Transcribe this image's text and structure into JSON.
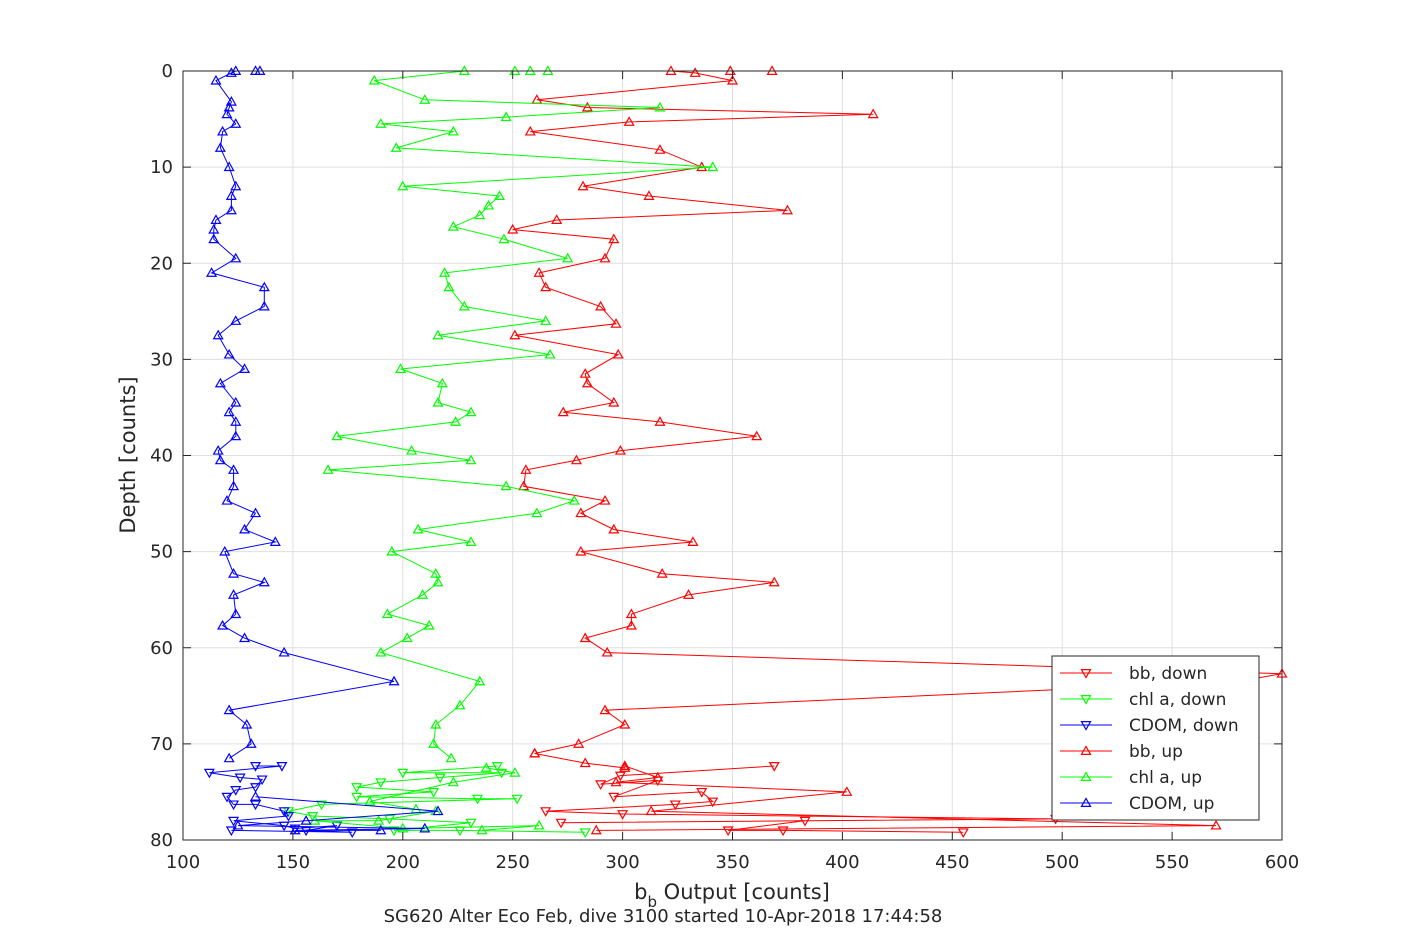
{
  "chart_data": {
    "type": "line",
    "title": "",
    "xlabel_main": "b",
    "xlabel_sub": "b",
    "xlabel_rest": " Output [counts]",
    "ylabel": "Depth [counts]",
    "caption": "SG620 Alter Eco Feb, dive 3100 started 10-Apr-2018 17:44:58",
    "xlim": [
      100,
      600
    ],
    "ylim": [
      0,
      80
    ],
    "y_reversed": true,
    "grid": true,
    "legend_position": "bottom-right",
    "xticks": [
      100,
      150,
      200,
      250,
      300,
      350,
      400,
      450,
      500,
      550,
      600
    ],
    "yticks": [
      0,
      10,
      20,
      30,
      40,
      50,
      60,
      70,
      80
    ],
    "series": [
      {
        "name": "bb, down",
        "color": "#ff0000",
        "marker": "triangle-down",
        "points": [
          [
            369,
            72.3
          ],
          [
            299,
            73.3
          ],
          [
            290,
            74.2
          ],
          [
            316,
            73.8
          ],
          [
            296,
            75.5
          ],
          [
            336,
            75.0
          ],
          [
            341,
            76.0
          ],
          [
            324,
            76.3
          ],
          [
            265,
            77.0
          ],
          [
            300,
            77.3
          ],
          [
            497,
            77.8
          ],
          [
            272,
            78.2
          ],
          [
            383,
            78.0
          ],
          [
            348,
            79.0
          ],
          [
            373,
            79.0
          ],
          [
            455,
            79.2
          ]
        ]
      },
      {
        "name": "chl a, down",
        "color": "#00ff00",
        "marker": "triangle-down",
        "points": [
          [
            243,
            72.3
          ],
          [
            200,
            73.0
          ],
          [
            245,
            73.0
          ],
          [
            217,
            73.5
          ],
          [
            190,
            74.0
          ],
          [
            179,
            74.5
          ],
          [
            214,
            75.0
          ],
          [
            179,
            75.5
          ],
          [
            234,
            75.7
          ],
          [
            252,
            75.7
          ],
          [
            163,
            76.3
          ],
          [
            148,
            77.0
          ],
          [
            159,
            77.5
          ],
          [
            194,
            77.8
          ],
          [
            231,
            78.2
          ],
          [
            196,
            79.0
          ],
          [
            226,
            79.0
          ],
          [
            283,
            79.2
          ]
        ]
      },
      {
        "name": "CDOM, down",
        "color": "#0000ff",
        "marker": "triangle-down",
        "points": [
          [
            133,
            72.3
          ],
          [
            145,
            72.3
          ],
          [
            112,
            73.0
          ],
          [
            126,
            73.5
          ],
          [
            136,
            73.7
          ],
          [
            133,
            74.5
          ],
          [
            124,
            74.8
          ],
          [
            120,
            75.5
          ],
          [
            123,
            76.3
          ],
          [
            133,
            76.3
          ],
          [
            146,
            77.0
          ],
          [
            148,
            77.5
          ],
          [
            123,
            78.0
          ],
          [
            146,
            78.5
          ],
          [
            151,
            78.8
          ],
          [
            170,
            78.5
          ],
          [
            156,
            79.0
          ],
          [
            177,
            79.2
          ],
          [
            122,
            79.0
          ]
        ]
      },
      {
        "name": "bb, up",
        "color": "#ff0000",
        "marker": "triangle-up",
        "points": [
          [
            260,
            71.0
          ],
          [
            283,
            72.0
          ],
          [
            301,
            72.5
          ],
          [
            301,
            72.3
          ],
          [
            316,
            73.5
          ],
          [
            297,
            74.0
          ],
          [
            402,
            75.0
          ],
          [
            313,
            77.0
          ],
          [
            570,
            78.5
          ],
          [
            288,
            79.0
          ]
        ]
      },
      {
        "name": "chl a, up",
        "color": "#00ff00",
        "marker": "triangle-up",
        "points": [
          [
            238,
            72.5
          ],
          [
            251,
            73.0
          ],
          [
            223,
            74.0
          ],
          [
            185,
            76.0
          ],
          [
            206,
            76.8
          ],
          [
            215,
            77.0
          ],
          [
            189,
            78.0
          ],
          [
            160,
            78.0
          ],
          [
            200,
            78.8
          ],
          [
            262,
            78.5
          ],
          [
            236,
            79.0
          ]
        ]
      },
      {
        "name": "CDOM, up",
        "color": "#0000ff",
        "marker": "triangle-up",
        "points": [
          [
            133,
            75.5
          ],
          [
            216,
            77.0
          ],
          [
            156,
            78.0
          ],
          [
            125,
            78.5
          ],
          [
            210,
            78.8
          ],
          [
            151,
            79.0
          ],
          [
            190,
            79.0
          ]
        ]
      },
      {
        "name": "",
        "color": "#ff0000",
        "marker": "triangle-up",
        "points": [
          [
            368,
            0
          ],
          [
            349,
            0
          ],
          [
            322,
            0
          ],
          [
            333,
            0.2
          ],
          [
            350,
            1.0
          ],
          [
            261,
            3.0
          ],
          [
            284,
            3.8
          ],
          [
            414,
            4.5
          ],
          [
            303,
            5.3
          ],
          [
            258,
            6.3
          ],
          [
            317,
            8.2
          ],
          [
            336,
            10.0
          ],
          [
            282,
            12.0
          ],
          [
            312,
            13.0
          ],
          [
            375,
            14.5
          ],
          [
            270,
            15.5
          ],
          [
            250,
            16.5
          ],
          [
            296,
            17.5
          ],
          [
            292,
            19.5
          ],
          [
            262,
            21.0
          ],
          [
            265,
            22.5
          ],
          [
            290,
            24.5
          ],
          [
            297,
            26.3
          ],
          [
            251,
            27.5
          ],
          [
            298,
            29.5
          ],
          [
            283,
            31.5
          ],
          [
            284,
            32.5
          ],
          [
            296,
            34.5
          ],
          [
            273,
            35.5
          ],
          [
            317,
            36.5
          ],
          [
            361,
            38.0
          ],
          [
            299,
            39.5
          ],
          [
            279,
            40.5
          ],
          [
            256,
            41.5
          ],
          [
            255,
            43.2
          ],
          [
            292,
            44.7
          ],
          [
            281,
            46.0
          ],
          [
            296,
            47.7
          ],
          [
            332,
            49.0
          ],
          [
            281,
            50.0
          ],
          [
            318,
            52.3
          ],
          [
            369,
            53.2
          ],
          [
            330,
            54.5
          ],
          [
            304,
            56.5
          ],
          [
            304,
            57.7
          ],
          [
            283,
            59.0
          ],
          [
            293,
            60.5
          ],
          [
            600,
            62.7
          ],
          [
            580,
            63.5
          ],
          [
            292,
            66.5
          ],
          [
            301,
            68.0
          ],
          [
            280,
            70.0
          ],
          [
            260,
            71.0
          ]
        ]
      },
      {
        "name": "",
        "color": "#00ff00",
        "marker": "triangle-up",
        "points": [
          [
            266,
            0
          ],
          [
            258,
            0
          ],
          [
            251,
            0
          ],
          [
            228,
            0
          ],
          [
            187,
            1.0
          ],
          [
            210,
            3.0
          ],
          [
            317,
            3.8
          ],
          [
            247,
            4.8
          ],
          [
            190,
            5.5
          ],
          [
            223,
            6.3
          ],
          [
            197,
            8.0
          ],
          [
            341,
            10.0
          ],
          [
            200,
            12.0
          ],
          [
            244,
            13.0
          ],
          [
            239,
            14.0
          ],
          [
            235,
            15.0
          ],
          [
            223,
            16.2
          ],
          [
            246,
            17.5
          ],
          [
            275,
            19.5
          ],
          [
            219,
            21.0
          ],
          [
            221,
            22.5
          ],
          [
            228,
            24.5
          ],
          [
            265,
            26.0
          ],
          [
            216,
            27.5
          ],
          [
            267,
            29.5
          ],
          [
            199,
            31.0
          ],
          [
            218,
            32.5
          ],
          [
            216,
            34.5
          ],
          [
            231,
            35.5
          ],
          [
            224,
            36.5
          ],
          [
            170,
            38.0
          ],
          [
            204,
            39.5
          ],
          [
            231,
            40.5
          ],
          [
            166,
            41.5
          ],
          [
            247,
            43.2
          ],
          [
            278,
            44.7
          ],
          [
            261,
            46.0
          ],
          [
            207,
            47.7
          ],
          [
            231,
            49.0
          ],
          [
            195,
            50.0
          ],
          [
            215,
            52.3
          ],
          [
            216,
            53.2
          ],
          [
            209,
            54.5
          ],
          [
            193,
            56.5
          ],
          [
            212,
            57.7
          ],
          [
            202,
            59.0
          ],
          [
            190,
            60.5
          ],
          [
            235,
            63.5
          ],
          [
            226,
            66.0
          ],
          [
            215,
            68.0
          ],
          [
            214,
            70.0
          ],
          [
            222,
            71.5
          ]
        ]
      },
      {
        "name": "",
        "color": "#0000ff",
        "marker": "triangle-up",
        "points": [
          [
            135,
            0
          ],
          [
            133,
            0
          ],
          [
            124,
            0
          ],
          [
            122,
            0.2
          ],
          [
            115,
            1.0
          ],
          [
            122,
            3.2
          ],
          [
            121,
            3.8
          ],
          [
            120,
            4.5
          ],
          [
            124,
            5.5
          ],
          [
            118,
            6.3
          ],
          [
            117,
            8.0
          ],
          [
            121,
            10.0
          ],
          [
            124,
            12.0
          ],
          [
            122,
            13.0
          ],
          [
            122,
            14.5
          ],
          [
            115,
            15.5
          ],
          [
            114,
            16.5
          ],
          [
            114,
            17.5
          ],
          [
            124,
            19.5
          ],
          [
            113,
            21.0
          ],
          [
            137,
            22.5
          ],
          [
            137,
            24.5
          ],
          [
            124,
            26.0
          ],
          [
            116,
            27.5
          ],
          [
            121,
            29.5
          ],
          [
            128,
            31.0
          ],
          [
            117,
            32.5
          ],
          [
            124,
            34.5
          ],
          [
            121,
            35.5
          ],
          [
            124,
            36.5
          ],
          [
            124,
            38.0
          ],
          [
            116,
            39.5
          ],
          [
            117,
            40.5
          ],
          [
            123,
            41.5
          ],
          [
            123,
            43.2
          ],
          [
            120,
            44.7
          ],
          [
            133,
            46.0
          ],
          [
            128,
            47.7
          ],
          [
            142,
            49.0
          ],
          [
            119,
            50.0
          ],
          [
            123,
            52.3
          ],
          [
            137,
            53.2
          ],
          [
            123,
            54.5
          ],
          [
            124,
            56.5
          ],
          [
            118,
            57.7
          ],
          [
            128,
            59.0
          ],
          [
            146,
            60.5
          ],
          [
            196,
            63.5
          ],
          [
            121,
            66.5
          ],
          [
            129,
            68.0
          ],
          [
            131,
            70.0
          ],
          [
            121,
            71.5
          ]
        ]
      }
    ],
    "legend": [
      "bb, down",
      "chl a, down",
      "CDOM, down",
      "bb, up",
      "chl a, up",
      "CDOM, up"
    ]
  }
}
